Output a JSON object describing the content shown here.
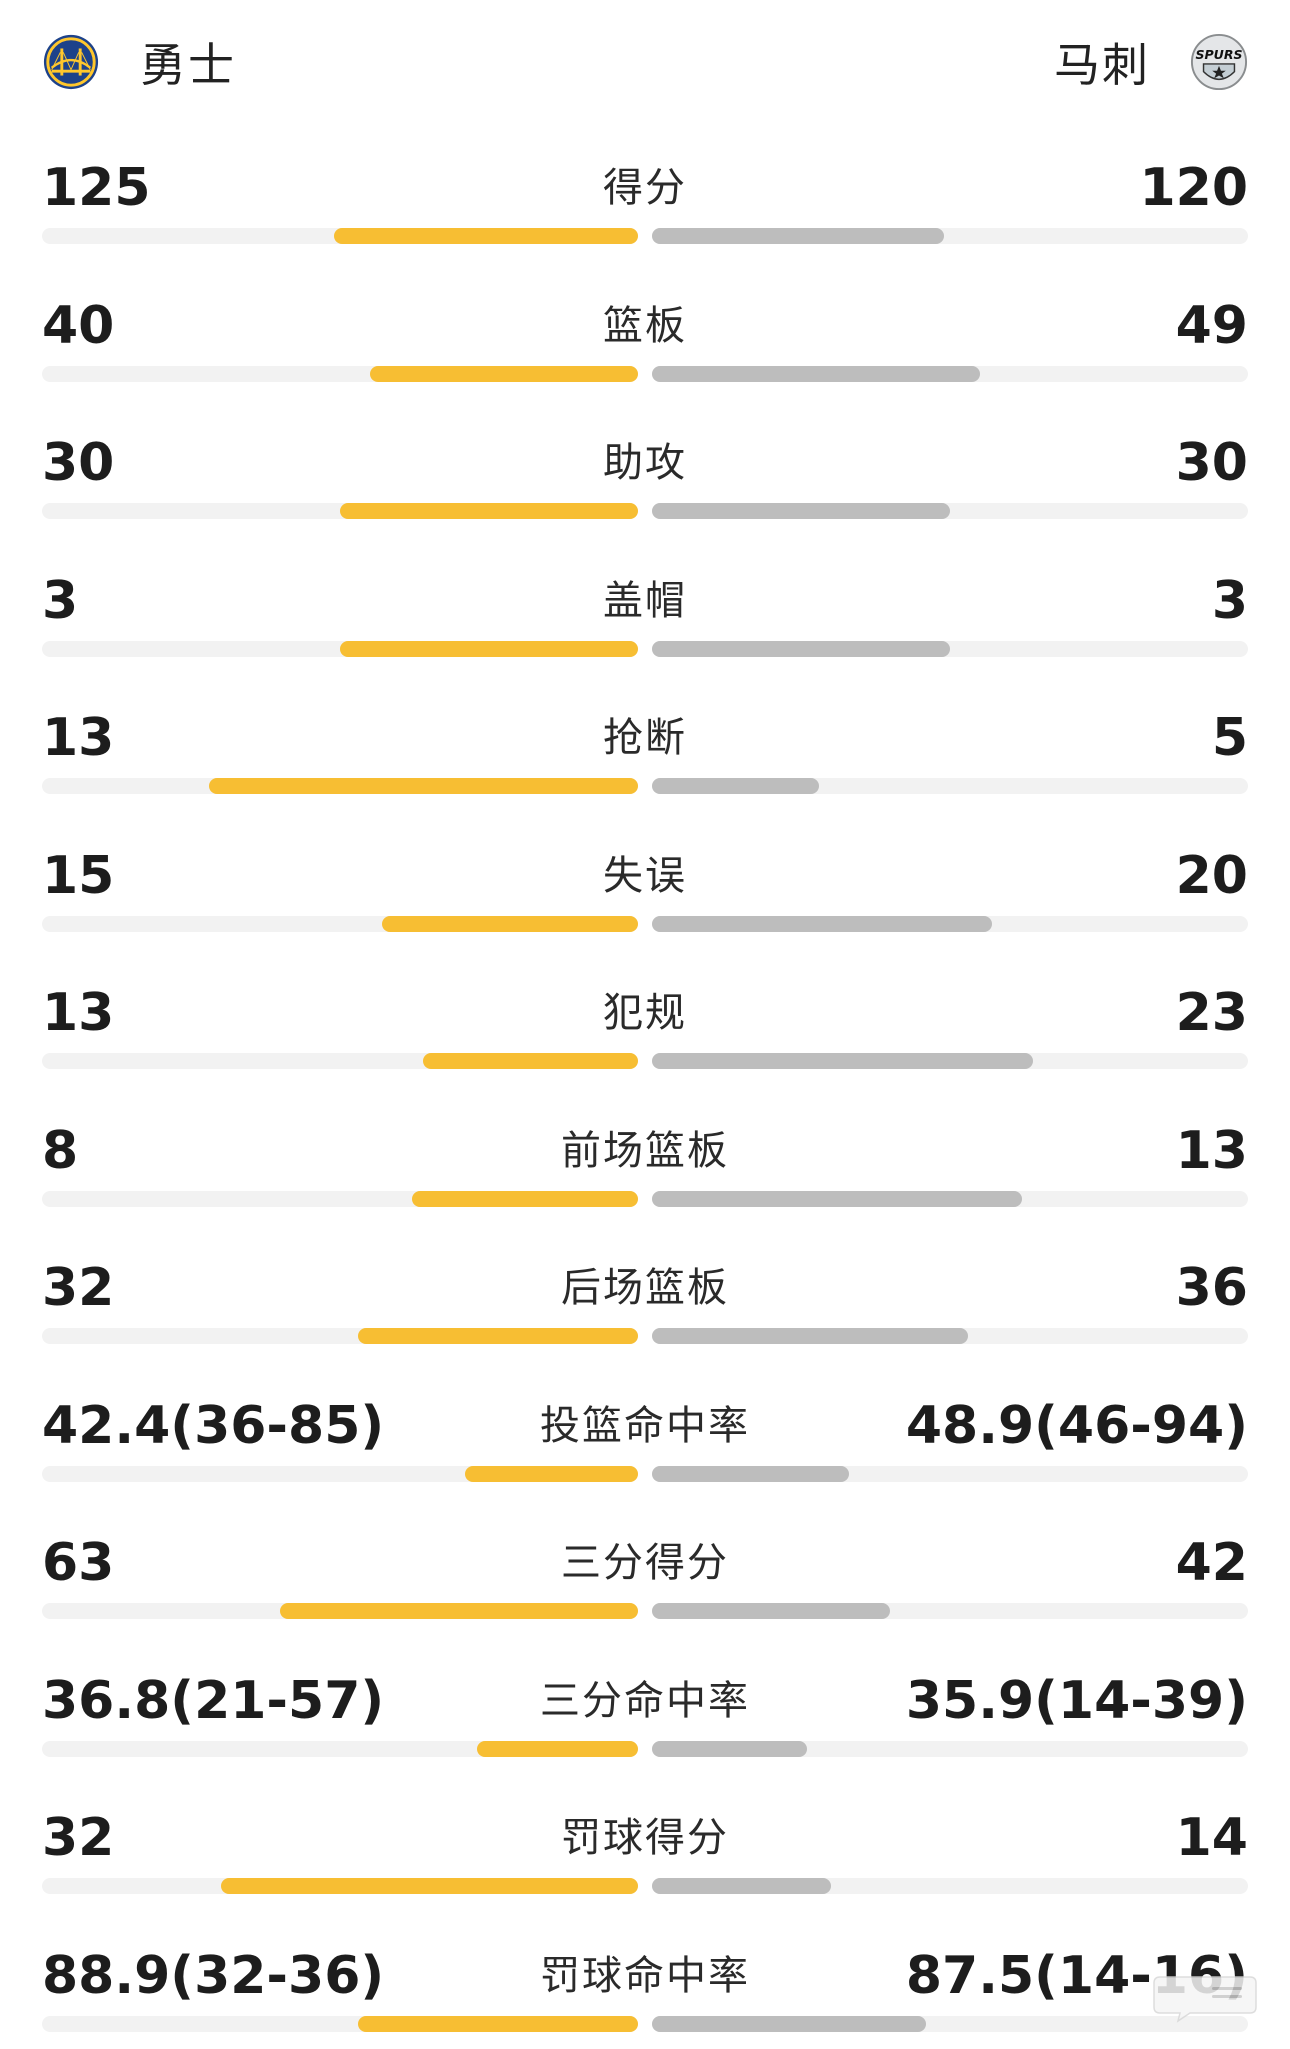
{
  "teams": {
    "home": {
      "name": "勇士",
      "logo": "warriors-logo"
    },
    "away": {
      "name": "马刺",
      "logo": "spurs-logo",
      "logo_text": "SPURS"
    }
  },
  "colors": {
    "home_bar": "#f7be33",
    "away_bar": "#bdbdbd",
    "track": "#f2f2f2"
  },
  "stats": [
    {
      "label": "得分",
      "home": "125",
      "away": "120",
      "home_ratio": 0.51,
      "away_ratio": 0.49
    },
    {
      "label": "篮板",
      "home": "40",
      "away": "49",
      "home_ratio": 0.45,
      "away_ratio": 0.55
    },
    {
      "label": "助攻",
      "home": "30",
      "away": "30",
      "home_ratio": 0.5,
      "away_ratio": 0.5
    },
    {
      "label": "盖帽",
      "home": "3",
      "away": "3",
      "home_ratio": 0.5,
      "away_ratio": 0.5
    },
    {
      "label": "抢断",
      "home": "13",
      "away": "5",
      "home_ratio": 0.72,
      "away_ratio": 0.28
    },
    {
      "label": "失误",
      "home": "15",
      "away": "20",
      "home_ratio": 0.43,
      "away_ratio": 0.57
    },
    {
      "label": "犯规",
      "home": "13",
      "away": "23",
      "home_ratio": 0.36,
      "away_ratio": 0.64
    },
    {
      "label": "前场篮板",
      "home": "8",
      "away": "13",
      "home_ratio": 0.38,
      "away_ratio": 0.62
    },
    {
      "label": "后场篮板",
      "home": "32",
      "away": "36",
      "home_ratio": 0.47,
      "away_ratio": 0.53
    },
    {
      "label": "投篮命中率",
      "home": "42.4(36-85)",
      "away": "48.9(46-94)",
      "home_ratio": 0.29,
      "away_ratio": 0.33
    },
    {
      "label": "三分得分",
      "home": "63",
      "away": "42",
      "home_ratio": 0.6,
      "away_ratio": 0.4
    },
    {
      "label": "三分命中率",
      "home": "36.8(21-57)",
      "away": "35.9(14-39)",
      "home_ratio": 0.27,
      "away_ratio": 0.26
    },
    {
      "label": "罚球得分",
      "home": "32",
      "away": "14",
      "home_ratio": 0.7,
      "away_ratio": 0.3
    },
    {
      "label": "罚球命中率",
      "home": "88.9(32-36)",
      "away": "87.5(14-16)",
      "home_ratio": 0.47,
      "away_ratio": 0.46
    }
  ]
}
